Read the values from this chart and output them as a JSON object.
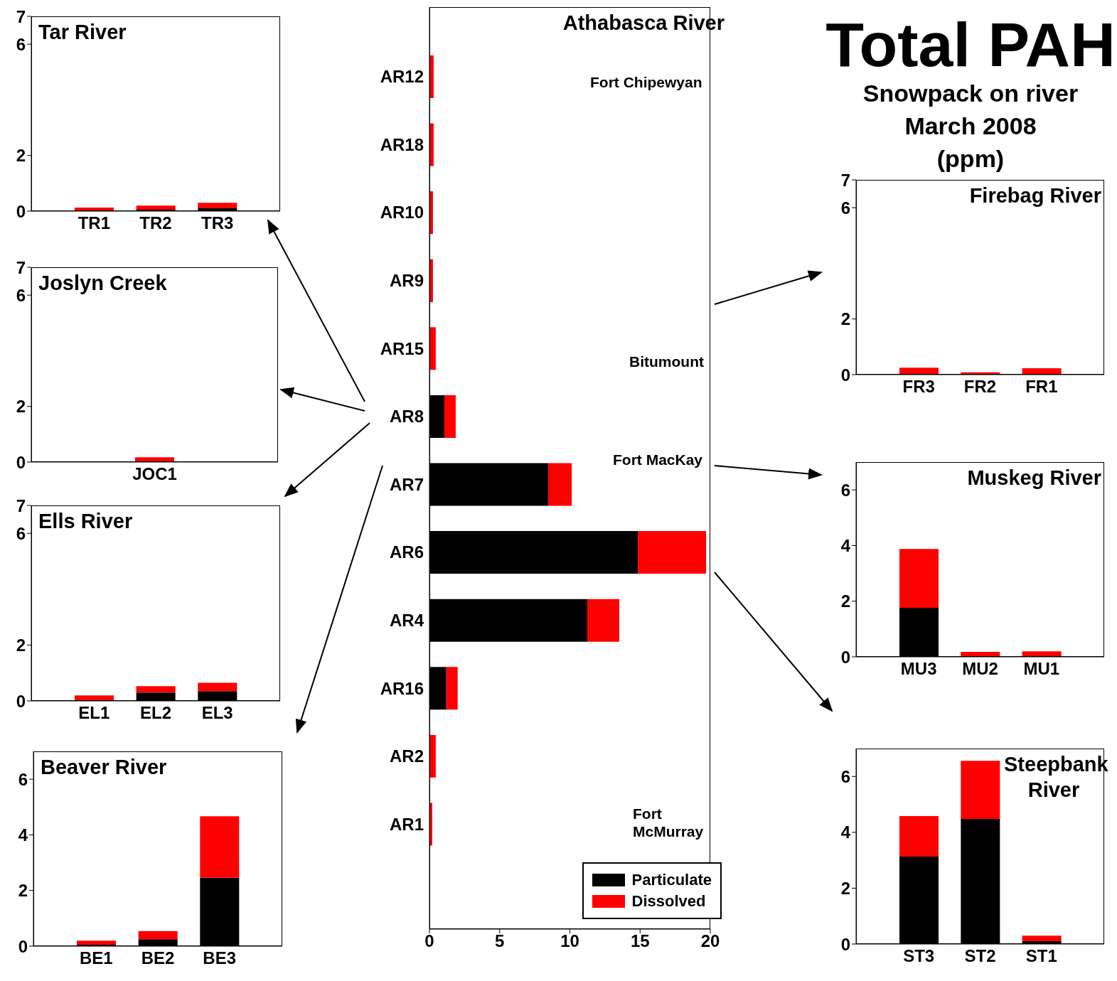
{
  "chart_data": [
    {
      "type": "other",
      "title": "Total PAH",
      "subtitle": "Snowpack on river\nMarch 2008\n(ppm)"
    },
    {
      "type": "bar",
      "title": "Tar River",
      "stacked": true,
      "categories": [
        "TR1",
        "TR2",
        "TR3"
      ],
      "ylim": [
        0,
        7
      ],
      "yticks": [
        0,
        2,
        6,
        7
      ],
      "series": [
        {
          "color": "#000000",
          "values": [
            0,
            0.05,
            0.1
          ]
        },
        {
          "color": "#ff0000",
          "values": [
            0.13,
            0.15,
            0.2
          ]
        }
      ]
    },
    {
      "type": "bar",
      "title": "Joslyn Creek",
      "stacked": true,
      "categories": [
        "JOC1"
      ],
      "ylim": [
        0,
        7
      ],
      "yticks": [
        0,
        2,
        6,
        7
      ],
      "series": [
        {
          "color": "#000000",
          "values": [
            0
          ]
        },
        {
          "color": "#ff0000",
          "values": [
            0.17
          ]
        }
      ]
    },
    {
      "type": "bar",
      "title": "Ells River",
      "stacked": true,
      "categories": [
        "EL1",
        "EL2",
        "EL3"
      ],
      "ylim": [
        0,
        7
      ],
      "yticks": [
        0,
        2,
        6,
        7
      ],
      "series": [
        {
          "color": "#000000",
          "values": [
            0,
            0.3,
            0.35
          ]
        },
        {
          "color": "#ff0000",
          "values": [
            0.2,
            0.23,
            0.3
          ]
        }
      ]
    },
    {
      "type": "bar",
      "title": "Beaver River",
      "stacked": true,
      "categories": [
        "BE1",
        "BE2",
        "BE3"
      ],
      "ylim": [
        0,
        7
      ],
      "yticks": [
        0,
        2,
        4,
        6
      ],
      "series": [
        {
          "color": "#000000",
          "values": [
            0.05,
            0.25,
            2.46
          ]
        },
        {
          "color": "#ff0000",
          "values": [
            0.15,
            0.29,
            2.21
          ]
        }
      ]
    },
    {
      "type": "bar",
      "title": "Athabasca River",
      "stacked": true,
      "orientation": "horizontal",
      "legend": "bottom right",
      "categories": [
        "AR12",
        "AR18",
        "AR10",
        "AR9",
        "AR15",
        "AR8",
        "AR7",
        "AR6",
        "AR4",
        "AR16",
        "AR2",
        "AR1"
      ],
      "xlim": [
        0,
        20
      ],
      "xticks": [
        0,
        5,
        10,
        15,
        20
      ],
      "annotations": [
        "Fort Chipewyan",
        "Bitumount",
        "Fort MacKay",
        "Fort McMurray"
      ],
      "series": [
        {
          "name": "Particulate",
          "color": "#000000",
          "values": [
            0,
            0,
            0,
            0,
            null,
            1.06,
            8.46,
            14.84,
            11.24,
            1.2,
            null,
            0
          ]
        },
        {
          "name": "Dissolved",
          "color": "#ff0000",
          "values": [
            0.3,
            0.3,
            0.25,
            0.25,
            0.45,
            0.81,
            1.67,
            4.86,
            2.28,
            0.81,
            0.45,
            0.2
          ]
        }
      ]
    },
    {
      "type": "bar",
      "title": "Firebag River",
      "stacked": true,
      "categories": [
        "FR3",
        "FR2",
        "FR1"
      ],
      "ylim": [
        0,
        7
      ],
      "yticks": [
        0,
        2,
        6,
        7
      ],
      "series": [
        {
          "color": "#000000",
          "values": [
            0,
            0,
            0
          ]
        },
        {
          "color": "#ff0000",
          "values": [
            0.25,
            0.08,
            0.23
          ]
        }
      ]
    },
    {
      "type": "bar",
      "title": "Muskeg River",
      "stacked": true,
      "categories": [
        "MU3",
        "MU2",
        "MU1"
      ],
      "ylim": [
        0,
        7
      ],
      "yticks": [
        0,
        2,
        4,
        6
      ],
      "series": [
        {
          "color": "#000000",
          "values": [
            1.76,
            0,
            0
          ]
        },
        {
          "color": "#ff0000",
          "values": [
            2.12,
            0.18,
            0.2
          ]
        }
      ]
    },
    {
      "type": "bar",
      "title": "Steepbank River",
      "stacked": true,
      "categories": [
        "ST3",
        "ST2",
        "ST1"
      ],
      "ylim": [
        0,
        7
      ],
      "yticks": [
        0,
        2,
        4,
        6
      ],
      "series": [
        {
          "color": "#000000",
          "values": [
            3.13,
            4.48,
            0.1
          ]
        },
        {
          "color": "#ff0000",
          "values": [
            1.45,
            2.08,
            0.2
          ]
        }
      ]
    }
  ]
}
